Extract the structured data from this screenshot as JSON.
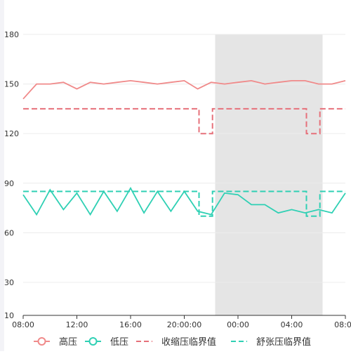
{
  "chart_data": {
    "type": "line",
    "xticks": [
      "08:00",
      "12:00",
      "16:00",
      "20:00:00",
      "00:00",
      "04:00",
      "08:00"
    ],
    "x_range_hours": [
      0,
      24
    ],
    "yticks": [
      10,
      30,
      60,
      90,
      120,
      150,
      180
    ],
    "ylim": [
      10,
      180
    ],
    "grid": true,
    "legend_position": "bottom",
    "shaded_region": {
      "x_from_hours": 14.3,
      "x_to_hours": 22.3,
      "color": "#e5e5e5"
    },
    "series": [
      {
        "name": "高压",
        "style": "line-with-circle-marker",
        "color": "#f08a8a",
        "points": [
          [
            0,
            141
          ],
          [
            1,
            150
          ],
          [
            2,
            150
          ],
          [
            3,
            151
          ],
          [
            4,
            147
          ],
          [
            5,
            151
          ],
          [
            6,
            150
          ],
          [
            7,
            151
          ],
          [
            8,
            152
          ],
          [
            9,
            151
          ],
          [
            10,
            150
          ],
          [
            11,
            151
          ],
          [
            12,
            152
          ],
          [
            13,
            147
          ],
          [
            14,
            151
          ],
          [
            15,
            150
          ],
          [
            16,
            151
          ],
          [
            17,
            152
          ],
          [
            18,
            150
          ],
          [
            19,
            151
          ],
          [
            20,
            152
          ],
          [
            21,
            152
          ],
          [
            22,
            150
          ],
          [
            23,
            150
          ],
          [
            24,
            152
          ]
        ]
      },
      {
        "name": "低压",
        "style": "line-with-circle-marker",
        "color": "#2fd0b4",
        "points": [
          [
            0,
            83
          ],
          [
            1,
            71
          ],
          [
            2,
            86
          ],
          [
            3,
            74
          ],
          [
            4,
            84
          ],
          [
            5,
            71
          ],
          [
            6,
            85
          ],
          [
            7,
            73
          ],
          [
            8,
            87
          ],
          [
            9,
            72
          ],
          [
            10,
            85
          ],
          [
            11,
            73
          ],
          [
            12,
            85
          ],
          [
            13,
            73
          ],
          [
            14,
            71
          ],
          [
            15,
            84
          ],
          [
            16,
            83
          ],
          [
            17,
            77
          ],
          [
            18,
            77
          ],
          [
            19,
            72
          ],
          [
            20,
            74
          ],
          [
            21,
            72
          ],
          [
            22,
            74
          ],
          [
            23,
            72
          ],
          [
            24,
            84
          ]
        ]
      },
      {
        "name": "收缩压临界值",
        "style": "dashed-step",
        "color": "#e6707a",
        "points": [
          [
            0,
            135
          ],
          [
            13.1,
            135
          ],
          [
            13.1,
            120
          ],
          [
            14.1,
            120
          ],
          [
            14.1,
            135
          ],
          [
            21.1,
            135
          ],
          [
            21.1,
            120
          ],
          [
            22.1,
            120
          ],
          [
            22.1,
            135
          ],
          [
            24,
            135
          ]
        ]
      },
      {
        "name": "舒张压临界值",
        "style": "dashed-step",
        "color": "#2fd0b4",
        "points": [
          [
            0,
            85
          ],
          [
            13.1,
            85
          ],
          [
            13.1,
            70
          ],
          [
            14.1,
            70
          ],
          [
            14.1,
            85
          ],
          [
            21.1,
            85
          ],
          [
            21.1,
            70
          ],
          [
            22.1,
            70
          ],
          [
            22.1,
            85
          ],
          [
            24,
            85
          ]
        ]
      }
    ]
  }
}
